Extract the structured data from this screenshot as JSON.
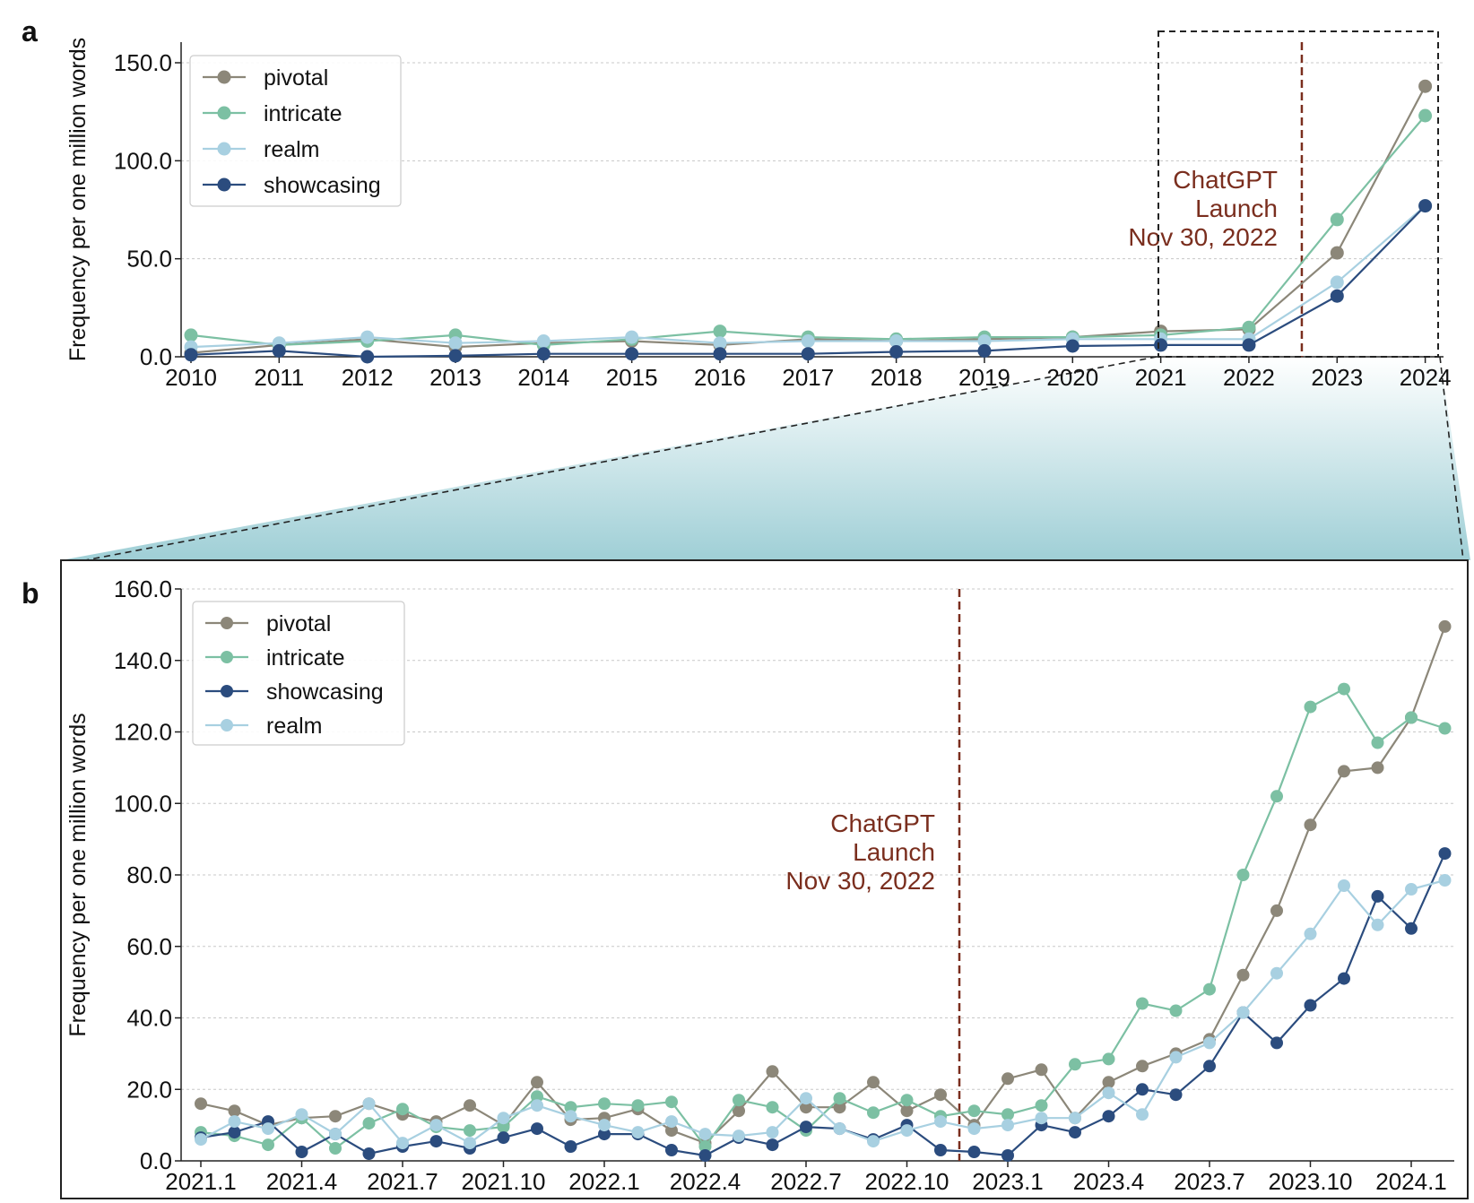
{
  "figure": {
    "panel_a_label": "a",
    "panel_b_label": "b"
  },
  "colors": {
    "pivotal": "#8c8779",
    "intricate": "#7cc0a3",
    "realm": "#a8d0e1",
    "showcasing": "#2b4c7e",
    "launch_line": "#7a2e1e",
    "zoom_fill": "#9fcfd6"
  },
  "chart_data": [
    {
      "type": "line",
      "panel": "a",
      "ylabel": "Frequency per one million words",
      "ylim": [
        0,
        160
      ],
      "yticks": [
        "0.0",
        "50.0",
        "100.0",
        "150.0"
      ],
      "x": [
        "2010",
        "2011",
        "2012",
        "2013",
        "2014",
        "2015",
        "2016",
        "2017",
        "2018",
        "2019",
        "2020",
        "2021",
        "2022",
        "2023",
        "2024"
      ],
      "grid": "horizontal dotted",
      "legend_position": "top-left",
      "legend": [
        "pivotal",
        "intricate",
        "realm",
        "showcasing"
      ],
      "series": [
        {
          "name": "pivotal",
          "key": "pivotal",
          "values": [
            2,
            6,
            9,
            5,
            7,
            8,
            6,
            9,
            8,
            9,
            10,
            13,
            14,
            53,
            138
          ]
        },
        {
          "name": "intricate",
          "key": "intricate",
          "values": [
            11,
            6,
            8,
            11,
            6,
            9,
            13,
            10,
            9,
            10,
            10,
            11,
            15,
            70,
            123
          ]
        },
        {
          "name": "realm",
          "key": "realm",
          "values": [
            5,
            7,
            10,
            7,
            8,
            10,
            7,
            8,
            8,
            8,
            9,
            9,
            9,
            38,
            77
          ]
        },
        {
          "name": "showcasing",
          "key": "showcasing",
          "values": [
            1,
            3,
            0,
            0.5,
            1.5,
            1.5,
            1.5,
            1.5,
            2.5,
            3,
            5.5,
            6,
            6,
            31,
            77
          ]
        }
      ],
      "annotation": {
        "lines": [
          "ChatGPT",
          "Launch",
          "Nov 30, 2022"
        ],
        "x": 2022.6
      }
    },
    {
      "type": "line",
      "panel": "b",
      "ylabel": "Frequency per one million words",
      "ylim": [
        0,
        160
      ],
      "yticks": [
        "0.0",
        "20.0",
        "40.0",
        "60.0",
        "80.0",
        "100.0",
        "120.0",
        "140.0",
        "160.0"
      ],
      "xticks": [
        "2021.1",
        "2021.4",
        "2021.7",
        "2021.10",
        "2022.1",
        "2022.4",
        "2022.7",
        "2022.10",
        "2023.1",
        "2023.4",
        "2023.7",
        "2023.10",
        "2024.1"
      ],
      "months_from": "2021.1",
      "months_to": "2024.2",
      "grid": "horizontal dotted",
      "legend_position": "top-left",
      "legend": [
        "pivotal",
        "intricate",
        "showcasing",
        "realm"
      ],
      "series": [
        {
          "name": "pivotal",
          "key": "pivotal",
          "values": [
            16,
            14,
            10,
            12,
            12.5,
            16,
            13,
            11,
            15.5,
            10,
            22,
            11.5,
            12,
            14.5,
            8.5,
            5,
            14,
            25,
            15,
            15,
            22,
            14,
            18.5,
            10,
            23,
            25.5,
            12,
            22,
            26.5,
            30,
            34,
            52,
            70,
            94,
            109,
            110,
            124,
            149.5
          ]
        },
        {
          "name": "intricate",
          "key": "intricate",
          "values": [
            8,
            7,
            4.5,
            12,
            3.5,
            10.5,
            14.5,
            9.5,
            8.5,
            9.5,
            18,
            15,
            16,
            15.5,
            16.5,
            4,
            17,
            15,
            8.5,
            17.5,
            13.5,
            17,
            12.5,
            14,
            13,
            15.5,
            27,
            28.5,
            44,
            42,
            48,
            80,
            102,
            127,
            132,
            117,
            124,
            121
          ]
        },
        {
          "name": "showcasing",
          "key": "showcasing",
          "values": [
            6.5,
            8,
            11,
            2.5,
            7.5,
            2,
            4,
            5.5,
            3.5,
            6.5,
            9,
            4,
            7.5,
            7.5,
            3,
            1.5,
            6.5,
            4.5,
            9.5,
            9,
            6,
            10,
            3,
            2.5,
            1.5,
            10,
            8,
            12.5,
            20,
            18.5,
            26.5,
            41.5,
            33,
            43.5,
            51,
            74,
            65,
            86
          ]
        },
        {
          "name": "realm",
          "key": "realm",
          "values": [
            6,
            11,
            9,
            13,
            7.5,
            16,
            5,
            10,
            5,
            12,
            15.5,
            12.5,
            10,
            8,
            11,
            7.5,
            7,
            8,
            17.5,
            9,
            5.5,
            8.5,
            11,
            9,
            10,
            12,
            12,
            19,
            13,
            29,
            33,
            41.5,
            52.5,
            63.5,
            77,
            66,
            76,
            78.5
          ]
        }
      ],
      "annotation": {
        "lines": [
          "ChatGPT",
          "Launch",
          "Nov 30, 2022"
        ],
        "x": 2022.92
      }
    }
  ]
}
